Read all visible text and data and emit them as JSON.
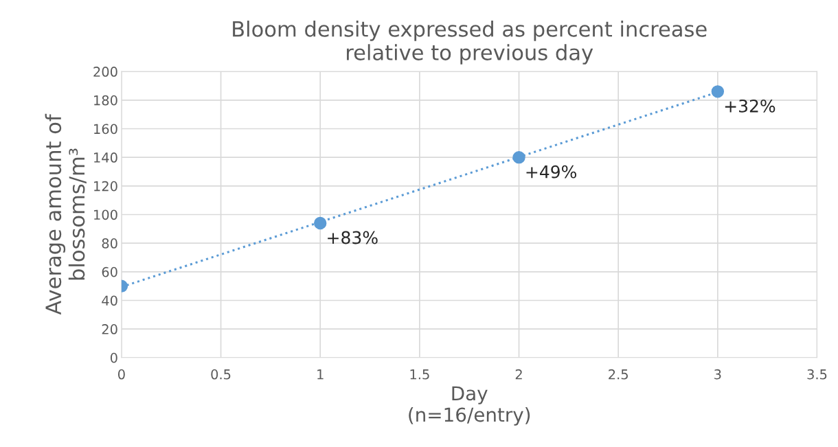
{
  "chart_data": {
    "type": "scatter",
    "title": "Bloom density expressed as percent increase\nrelative to previous day",
    "xlabel": "Day\n(n=16/entry)",
    "ylabel": "Average amount of\nblossoms/m³",
    "x": [
      0,
      1,
      2,
      3
    ],
    "series": [
      {
        "color": "#5b9bd5",
        "values": [
          50,
          94,
          140,
          186
        ],
        "marker": "circle"
      },
      {
        "type": "line",
        "color": "#5b9bd5",
        "x": [
          0,
          3
        ],
        "values": [
          49.4,
          185.6
        ],
        "line_style": "dotted",
        "marker": "none"
      }
    ],
    "annotations": [
      {
        "text": "+83%",
        "x": 1,
        "y": 94
      },
      {
        "text": "+49%",
        "x": 2,
        "y": 140
      },
      {
        "text": "+32%",
        "x": 3,
        "y": 186
      }
    ],
    "xlim": [
      0,
      3.5
    ],
    "xticks": [
      0,
      0.5,
      1,
      1.5,
      2,
      2.5,
      3,
      3.5
    ],
    "ylim": [
      0,
      200
    ],
    "yticks": [
      0,
      20,
      40,
      60,
      80,
      100,
      120,
      140,
      160,
      180,
      200
    ],
    "grid": true
  }
}
